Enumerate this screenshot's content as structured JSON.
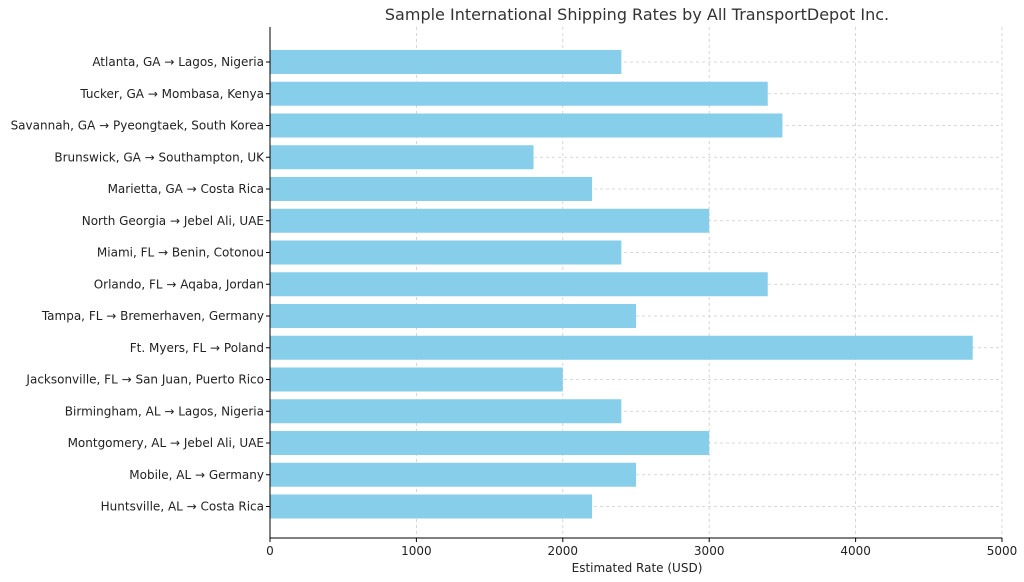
{
  "chart_data": {
    "type": "bar",
    "orientation": "horizontal",
    "title": "Sample International Shipping Rates by All TransportDepot Inc.",
    "xlabel": "Estimated Rate (USD)",
    "ylabel": "",
    "xlim": [
      0,
      5000
    ],
    "xticks": [
      "0",
      "1000",
      "2000",
      "3000",
      "4000",
      "5000"
    ],
    "grid": true,
    "bar_color": "#87CEEB",
    "categories": [
      "Atlanta, GA → Lagos, Nigeria",
      "Tucker, GA → Mombasa, Kenya",
      "Savannah, GA → Pyeongtaek, South Korea",
      "Brunswick, GA → Southampton, UK",
      "Marietta, GA → Costa Rica",
      "North Georgia → Jebel Ali, UAE",
      "Miami, FL → Benin, Cotonou",
      "Orlando, FL → Aqaba, Jordan",
      "Tampa, FL → Bremerhaven, Germany",
      "Ft. Myers, FL → Poland",
      "Jacksonville, FL → San Juan, Puerto Rico",
      "Birmingham, AL → Lagos, Nigeria",
      "Montgomery, AL → Jebel Ali, UAE",
      "Mobile, AL → Germany",
      "Huntsville, AL → Costa Rica"
    ],
    "values": [
      2400,
      3400,
      3500,
      1800,
      2200,
      3000,
      2400,
      3400,
      2500,
      4800,
      2000,
      2400,
      3000,
      2500,
      2200
    ]
  }
}
